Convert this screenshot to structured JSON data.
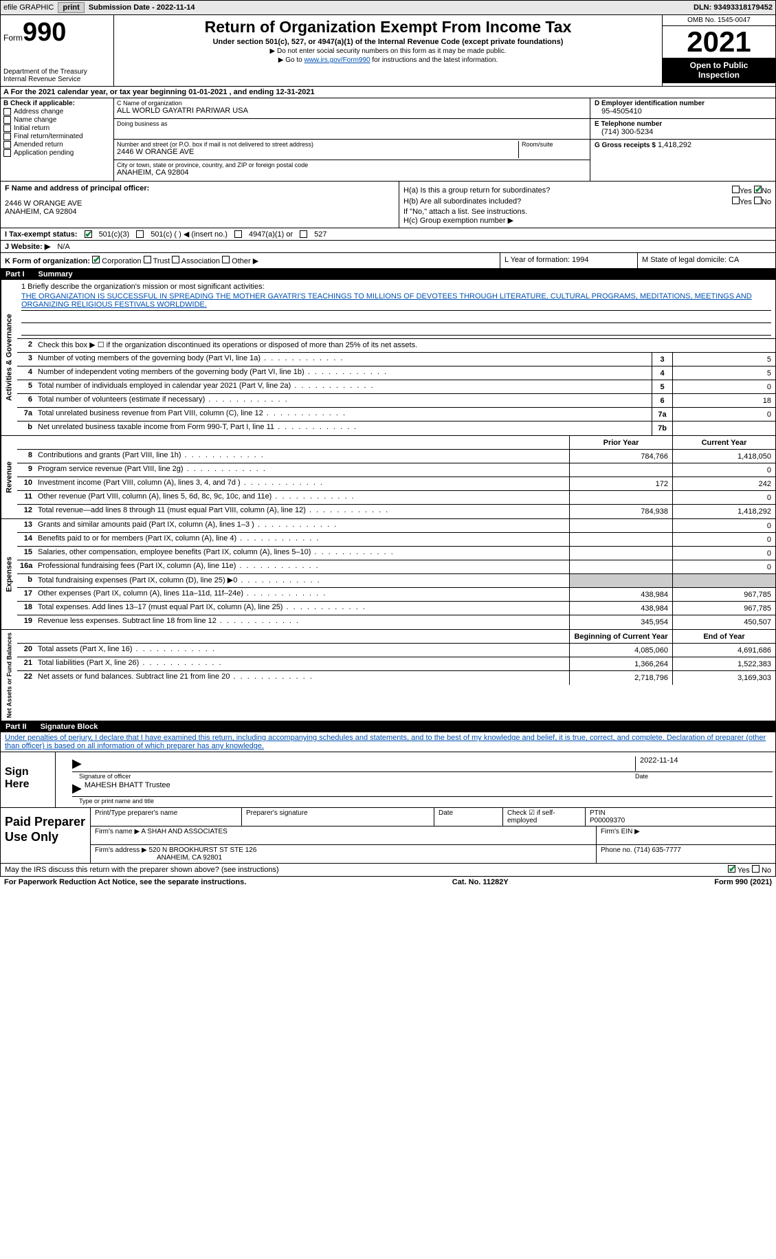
{
  "top": {
    "efile": "efile GRAPHIC",
    "print": "print",
    "sub_label": "Submission Date - 2022-11-14",
    "dln_label": "DLN: 93493318179452"
  },
  "header": {
    "form": "Form",
    "num": "990",
    "dept": "Department of the Treasury",
    "irs": "Internal Revenue Service",
    "title": "Return of Organization Exempt From Income Tax",
    "sub": "Under section 501(c), 527, or 4947(a)(1) of the Internal Revenue Code (except private foundations)",
    "note1": "▶ Do not enter social security numbers on this form as it may be made public.",
    "note2_a": "▶ Go to ",
    "note2_link": "www.irs.gov/Form990",
    "note2_b": " for instructions and the latest information.",
    "omb": "OMB No. 1545-0047",
    "year": "2021",
    "inspect1": "Open to Public",
    "inspect2": "Inspection"
  },
  "row_a": "A For the 2021 calendar year, or tax year beginning 01-01-2021    , and ending 12-31-2021",
  "block_b": {
    "title": "B Check if applicable:",
    "opts": [
      "Address change",
      "Name change",
      "Initial return",
      "Final return/terminated",
      "Amended return",
      "Application pending"
    ]
  },
  "block_c": {
    "name_label": "C Name of organization",
    "name": "ALL WORLD GAYATRI PARIWAR USA",
    "dba_label": "Doing business as",
    "dba": "",
    "addr_label": "Number and street (or P.O. box if mail is not delivered to street address)",
    "room_label": "Room/suite",
    "addr": "2446 W ORANGE AVE",
    "city_label": "City or town, state or province, country, and ZIP or foreign postal code",
    "city": "ANAHEIM, CA  92804"
  },
  "block_d": {
    "ein_label": "D Employer identification number",
    "ein": "95-4505410",
    "tel_label": "E Telephone number",
    "tel": "(714) 300-5234",
    "gross_label": "G Gross receipts $",
    "gross": "1,418,292"
  },
  "block_f": {
    "label": "F Name and address of principal officer:",
    "addr1": "2446 W ORANGE AVE",
    "addr2": "ANAHEIM, CA  92804"
  },
  "block_h": {
    "a_label": "H(a)  Is this a group return for subordinates?",
    "b_label": "H(b)  Are all subordinates included?",
    "b_note": "If \"No,\" attach a list. See instructions.",
    "c_label": "H(c)  Group exemption number ▶",
    "yes": "Yes",
    "no": "No"
  },
  "row_i": {
    "label": "I   Tax-exempt status:",
    "o1": "501(c)(3)",
    "o2": "501(c) (  ) ◀ (insert no.)",
    "o3": "4947(a)(1) or",
    "o4": "527"
  },
  "row_j": {
    "label": "J   Website: ▶",
    "val": "N/A"
  },
  "row_k": {
    "label": "K Form of organization:",
    "o1": "Corporation",
    "o2": "Trust",
    "o3": "Association",
    "o4": "Other ▶",
    "l_label": "L Year of formation: 1994",
    "m_label": "M State of legal domicile: CA"
  },
  "part1": {
    "label": "Part I",
    "title": "Summary"
  },
  "mission": {
    "label": "1   Briefly describe the organization's mission or most significant activities:",
    "text": "THE ORGANIZATION IS SUCCESSFUL IN SPREADING THE MOTHER GAYATRI'S TEACHINGS TO MILLIONS OF DEVOTEES THROUGH LITERATURE, CULTURAL PROGRAMS, MEDITATIONS, MEETINGS AND ORGANIZING RELIGIOUS FESTIVALS WORLDWIDE."
  },
  "lines_simple": [
    {
      "n": "2",
      "d": "Check this box ▶ ☐  if the organization discontinued its operations or disposed of more than 25% of its net assets."
    },
    {
      "n": "3",
      "d": "Number of voting members of the governing body (Part VI, line 1a)",
      "box": "3",
      "v": "5"
    },
    {
      "n": "4",
      "d": "Number of independent voting members of the governing body (Part VI, line 1b)",
      "box": "4",
      "v": "5"
    },
    {
      "n": "5",
      "d": "Total number of individuals employed in calendar year 2021 (Part V, line 2a)",
      "box": "5",
      "v": "0"
    },
    {
      "n": "6",
      "d": "Total number of volunteers (estimate if necessary)",
      "box": "6",
      "v": "18"
    },
    {
      "n": "7a",
      "d": "Total unrelated business revenue from Part VIII, column (C), line 12",
      "box": "7a",
      "v": "0"
    },
    {
      "n": "b",
      "d": "Net unrelated business taxable income from Form 990-T, Part I, line 11",
      "box": "7b",
      "v": ""
    }
  ],
  "vtabs": {
    "ag": "Activities & Governance",
    "rev": "Revenue",
    "exp": "Expenses",
    "na": "Net Assets or Fund Balances"
  },
  "col_headers": {
    "prior": "Prior Year",
    "current": "Current Year"
  },
  "revenue": [
    {
      "n": "8",
      "d": "Contributions and grants (Part VIII, line 1h)",
      "p": "784,766",
      "c": "1,418,050"
    },
    {
      "n": "9",
      "d": "Program service revenue (Part VIII, line 2g)",
      "p": "",
      "c": "0"
    },
    {
      "n": "10",
      "d": "Investment income (Part VIII, column (A), lines 3, 4, and 7d )",
      "p": "172",
      "c": "242"
    },
    {
      "n": "11",
      "d": "Other revenue (Part VIII, column (A), lines 5, 6d, 8c, 9c, 10c, and 11e)",
      "p": "",
      "c": "0"
    },
    {
      "n": "12",
      "d": "Total revenue—add lines 8 through 11 (must equal Part VIII, column (A), line 12)",
      "p": "784,938",
      "c": "1,418,292"
    }
  ],
  "expenses": [
    {
      "n": "13",
      "d": "Grants and similar amounts paid (Part IX, column (A), lines 1–3 )",
      "p": "",
      "c": "0"
    },
    {
      "n": "14",
      "d": "Benefits paid to or for members (Part IX, column (A), line 4)",
      "p": "",
      "c": "0"
    },
    {
      "n": "15",
      "d": "Salaries, other compensation, employee benefits (Part IX, column (A), lines 5–10)",
      "p": "",
      "c": "0"
    },
    {
      "n": "16a",
      "d": "Professional fundraising fees (Part IX, column (A), line 11e)",
      "p": "",
      "c": "0"
    },
    {
      "n": "b",
      "d": "Total fundraising expenses (Part IX, column (D), line 25) ▶0",
      "p": "shaded",
      "c": "shaded"
    },
    {
      "n": "17",
      "d": "Other expenses (Part IX, column (A), lines 11a–11d, 11f–24e)",
      "p": "438,984",
      "c": "967,785"
    },
    {
      "n": "18",
      "d": "Total expenses. Add lines 13–17 (must equal Part IX, column (A), line 25)",
      "p": "438,984",
      "c": "967,785"
    },
    {
      "n": "19",
      "d": "Revenue less expenses. Subtract line 18 from line 12",
      "p": "345,954",
      "c": "450,507"
    }
  ],
  "na_headers": {
    "beg": "Beginning of Current Year",
    "end": "End of Year"
  },
  "netassets": [
    {
      "n": "20",
      "d": "Total assets (Part X, line 16)",
      "p": "4,085,060",
      "c": "4,691,686"
    },
    {
      "n": "21",
      "d": "Total liabilities (Part X, line 26)",
      "p": "1,366,264",
      "c": "1,522,383"
    },
    {
      "n": "22",
      "d": "Net assets or fund balances. Subtract line 21 from line 20",
      "p": "2,718,796",
      "c": "3,169,303"
    }
  ],
  "part2": {
    "label": "Part II",
    "title": "Signature Block"
  },
  "perjury": "Under penalties of perjury, I declare that I have examined this return, including accompanying schedules and statements, and to the best of my knowledge and belief, it is true, correct, and complete. Declaration of preparer (other than officer) is based on all information of which preparer has any knowledge.",
  "sign": {
    "here": "Sign Here",
    "sig_label": "Signature of officer",
    "date_label": "Date",
    "date": "2022-11-14",
    "name": "MAHESH BHATT  Trustee",
    "name_label": "Type or print name and title"
  },
  "paid": {
    "label": "Paid Preparer Use Only",
    "h1": "Print/Type preparer's name",
    "h2": "Preparer's signature",
    "h3": "Date",
    "h4": "Check ☑ if self-employed",
    "h5_label": "PTIN",
    "h5": "P00009370",
    "firm_label": "Firm's name    ▶",
    "firm": "A SHAH AND ASSOCIATES",
    "ein_label": "Firm's EIN ▶",
    "addr_label": "Firm's address ▶",
    "addr1": "520 N BROOKHURST ST STE 126",
    "addr2": "ANAHEIM, CA  92801",
    "phone_label": "Phone no.",
    "phone": "(714) 635-7777"
  },
  "footer": {
    "q": "May the IRS discuss this return with the preparer shown above? (see instructions)",
    "yes": "Yes",
    "no": "No",
    "pra": "For Paperwork Reduction Act Notice, see the separate instructions.",
    "cat": "Cat. No. 11282Y",
    "form": "Form 990 (2021)"
  }
}
